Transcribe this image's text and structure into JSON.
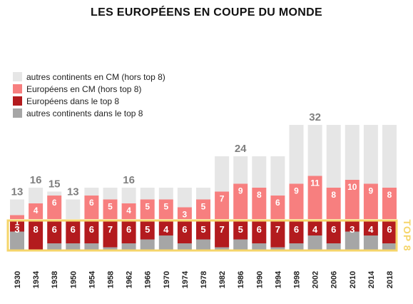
{
  "chart_data": {
    "type": "bar",
    "stacked": true,
    "title": "LES EUROPÉENS EN COUPE DU MONDE",
    "categories": [
      "1930",
      "1934",
      "1938",
      "1950",
      "1954",
      "1958",
      "1962",
      "1966",
      "1970",
      "1974",
      "1978",
      "1982",
      "1986",
      "1990",
      "1994",
      "1998",
      "2002",
      "2006",
      "2010",
      "2014",
      "2018"
    ],
    "series": [
      {
        "name": "autres continents dans le top 8",
        "color": "#a6a6a6",
        "values": [
          5,
          0,
          2,
          2,
          2,
          1,
          2,
          3,
          4,
          2,
          3,
          1,
          3,
          2,
          1,
          2,
          4,
          2,
          5,
          4,
          2
        ]
      },
      {
        "name": "Européens dans le top 8",
        "color": "#b31b1e",
        "values": [
          3,
          8,
          6,
          6,
          6,
          7,
          6,
          5,
          4,
          6,
          5,
          7,
          5,
          6,
          7,
          6,
          4,
          6,
          3,
          4,
          6
        ]
      },
      {
        "name": "Européens en CM (hors top 8)",
        "color": "#f77f7f",
        "values": [
          1,
          4,
          6,
          0,
          6,
          5,
          4,
          5,
          5,
          3,
          5,
          7,
          9,
          8,
          6,
          9,
          11,
          8,
          10,
          9,
          8
        ]
      },
      {
        "name": "autres continents en CM (hors top 8)",
        "color": "#e6e6e6",
        "values": [
          4,
          4,
          1,
          5,
          2,
          3,
          4,
          3,
          3,
          5,
          3,
          9,
          7,
          8,
          10,
          15,
          13,
          16,
          14,
          15,
          16
        ]
      }
    ],
    "totals_labels": [
      {
        "category": "1930",
        "value": 13
      },
      {
        "category": "1934",
        "value": 16
      },
      {
        "category": "1938",
        "value": 15
      },
      {
        "category": "1950",
        "value": 13
      },
      {
        "category": "1962",
        "value": 16
      },
      {
        "category": "1986",
        "value": 24
      },
      {
        "category": "2002",
        "value": 32
      }
    ],
    "top8_box_label": "TOP 8",
    "top8_box_color": "#f5d56a",
    "ylim": [
      0,
      32
    ],
    "grid": false,
    "legend_position": "top-left"
  }
}
